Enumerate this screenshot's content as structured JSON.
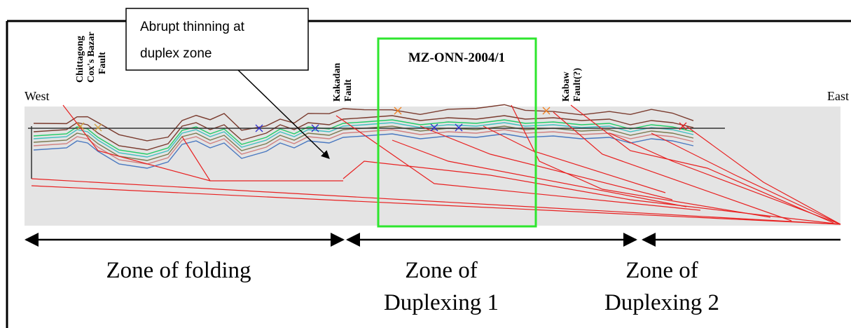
{
  "callout": {
    "lines": [
      "Abrupt thinning at",
      "duplex zone"
    ]
  },
  "faults": [
    {
      "lines": [
        "Chittagong",
        "Cox's Bazar",
        "Fault"
      ]
    },
    {
      "lines": [
        "Kakadan",
        "Fault"
      ]
    },
    {
      "lines": [
        "Kabaw",
        "Fault(?)"
      ]
    }
  ],
  "well": "MZ-ONN-2004/1",
  "directions": {
    "west": "West",
    "east": "East"
  },
  "zones": [
    {
      "lines": [
        "Zone of folding"
      ]
    },
    {
      "lines": [
        "Zone of",
        "Duplexing 1"
      ]
    },
    {
      "lines": [
        "Zone of",
        "Duplexing 2"
      ]
    }
  ]
}
